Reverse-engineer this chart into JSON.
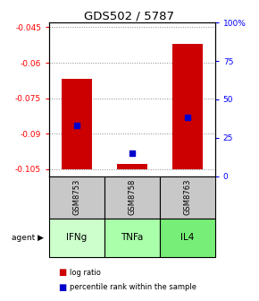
{
  "title": "GDS502 / 5787",
  "ylim_left": [
    -0.108,
    -0.043
  ],
  "ylim_right": [
    0,
    100
  ],
  "yticks_left": [
    -0.105,
    -0.09,
    -0.075,
    -0.06,
    -0.045
  ],
  "yticks_right": [
    0,
    25,
    50,
    75,
    100
  ],
  "ytick_labels_left": [
    "-0.105",
    "-0.09",
    "-0.075",
    "-0.06",
    "-0.045"
  ],
  "ytick_labels_right": [
    "0",
    "25",
    "50",
    "75",
    "100%"
  ],
  "samples": [
    "GSM8753",
    "GSM8758",
    "GSM8763"
  ],
  "agents": [
    "IFNg",
    "TNFa",
    "IL4"
  ],
  "bar_bottom": -0.105,
  "bar_tops": [
    -0.067,
    -0.103,
    -0.052
  ],
  "bar_color": "#cc0000",
  "bar_width": 0.55,
  "percentile_ranks": [
    33,
    15,
    38
  ],
  "percentile_color": "#0000cc",
  "gsm_bg": "#c8c8c8",
  "legend_log_color": "#cc0000",
  "legend_pct_color": "#0000cc",
  "grid_color": "#888888",
  "agent_colors": [
    "#ccffcc",
    "#aaffaa",
    "#77ee77"
  ]
}
